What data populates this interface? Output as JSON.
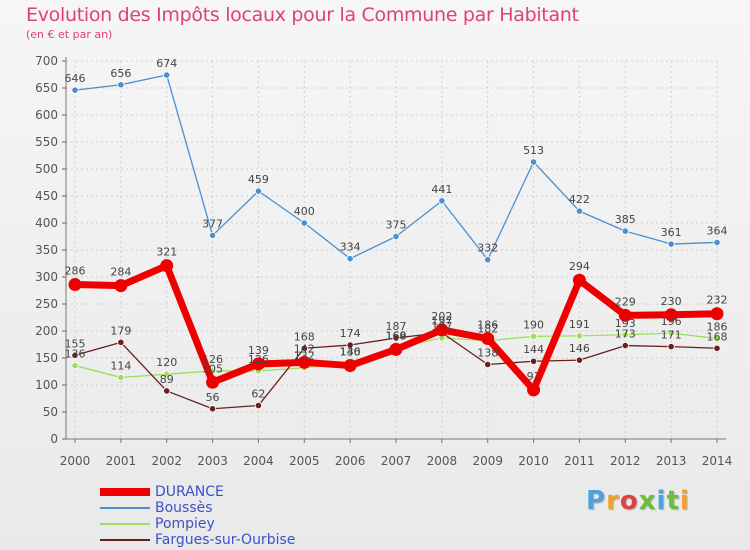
{
  "title": "Evolution des Impôts locaux pour la Commune par Habitant",
  "subtitle": "(en € et par an)",
  "brand": "Proxiti",
  "colors": {
    "DURANCE": "#ee0000",
    "Boussès": "#4a8fd0",
    "Pompiey": "#9be05a",
    "Fargues-sur-Ourbise": "#6a1e1e",
    "title": "#e0407a",
    "grid": "#cfcfcf",
    "axis": "#777777",
    "brand": [
      "#4aa3df",
      "#f0a030",
      "#e04040",
      "#6abf3a",
      "#4aa3df",
      "#6abf3a",
      "#f0a030"
    ]
  },
  "chart_data": {
    "type": "line",
    "x": [
      "2000",
      "2001",
      "2002",
      "2003",
      "2004",
      "2005",
      "2006",
      "2007",
      "2008",
      "2009",
      "2010",
      "2011",
      "2012",
      "2013",
      "2014"
    ],
    "ylim": [
      0,
      700
    ],
    "yticks": [
      "0",
      "50",
      "100",
      "150",
      "200",
      "250",
      "300",
      "350",
      "400",
      "450",
      "500",
      "550",
      "600",
      "650",
      "700"
    ],
    "grid": true,
    "legend": "bottom-left",
    "series": [
      {
        "name": "Boussès",
        "values": [
          646,
          656,
          674,
          377,
          459,
          400,
          334,
          375,
          441,
          332,
          513,
          422,
          385,
          361,
          364
        ],
        "labels": [
          "646",
          "656",
          "674",
          "377",
          "459",
          "400",
          "334",
          "375",
          "441",
          "332",
          "513",
          "422",
          "385",
          "361",
          "364"
        ]
      },
      {
        "name": "Pompiey",
        "values": [
          136,
          114,
          120,
          126,
          126,
          132,
          140,
          169,
          187,
          182,
          190,
          191,
          193,
          196,
          186
        ],
        "labels": [
          "136",
          "114",
          "120",
          "126",
          "126",
          "132",
          "140",
          "169",
          "187",
          "182",
          "190",
          "191",
          "193",
          "196",
          "186"
        ]
      },
      {
        "name": "Fargues-sur-Ourbise",
        "values": [
          155,
          179,
          89,
          56,
          62,
          168,
          174,
          187,
          197,
          138,
          144,
          146,
          173,
          171,
          168
        ],
        "labels": [
          "155",
          "179",
          "89",
          "56",
          "62",
          "168",
          "174",
          "187",
          "197",
          "138",
          "144",
          "146",
          "173",
          "171",
          "168"
        ]
      },
      {
        "name": "DURANCE",
        "values": [
          286,
          284,
          321,
          105,
          139,
          142,
          136,
          166,
          202,
          186,
          91,
          294,
          229,
          230,
          232
        ],
        "labels": [
          "286",
          "284",
          "321",
          "105",
          "139",
          "142",
          "136",
          "166",
          "202",
          "186",
          "91",
          "294",
          "229",
          "230",
          "232"
        ]
      }
    ],
    "legend_order": [
      "DURANCE",
      "Boussès",
      "Pompiey",
      "Fargues-sur-Ourbise"
    ]
  }
}
